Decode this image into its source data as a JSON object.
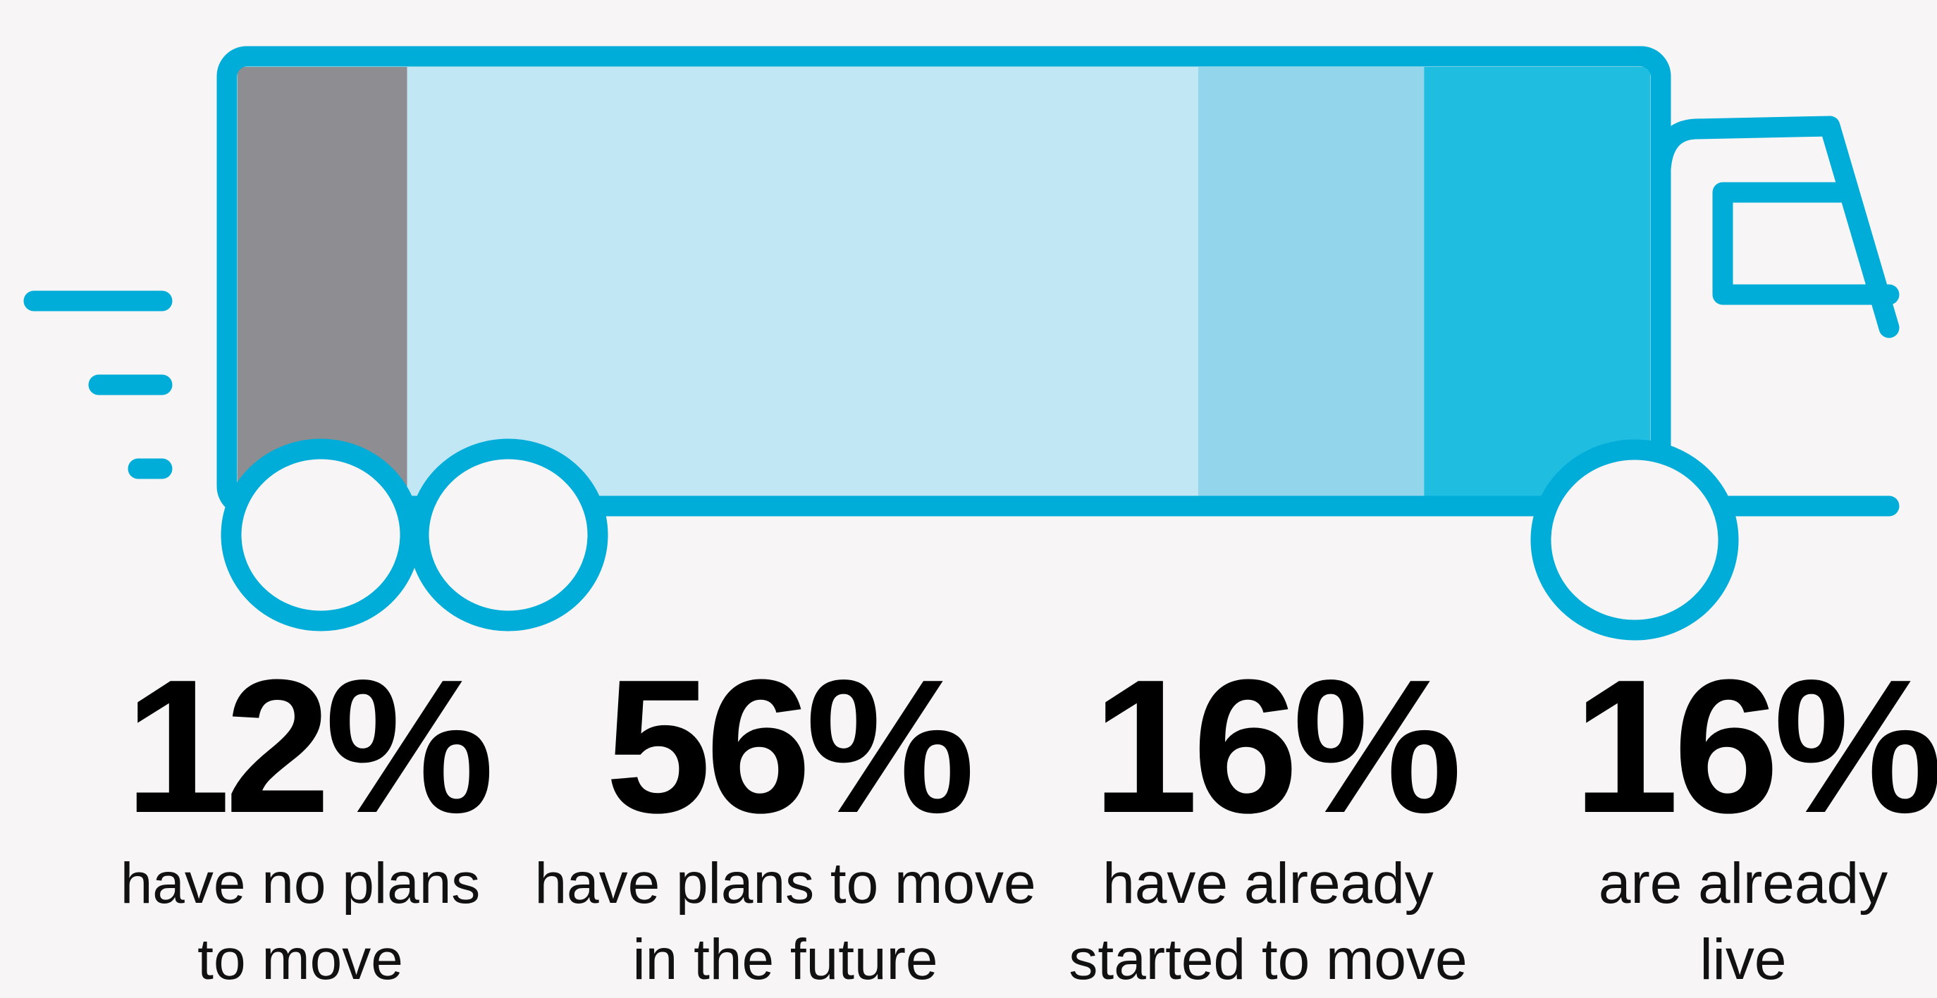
{
  "chart_data": {
    "type": "truck-bar",
    "categories": [
      "have no plans to move",
      "have plans to move in the future",
      "have already started to move",
      "are already live"
    ],
    "values": [
      12,
      56,
      16,
      16
    ],
    "value_labels": [
      "12%",
      "56%",
      "16%",
      "16%"
    ],
    "colors": [
      "#8e8d92",
      "#c1e6f4",
      "#93d6ec",
      "#1fbde0"
    ],
    "xlim": [
      0,
      100
    ]
  }
}
